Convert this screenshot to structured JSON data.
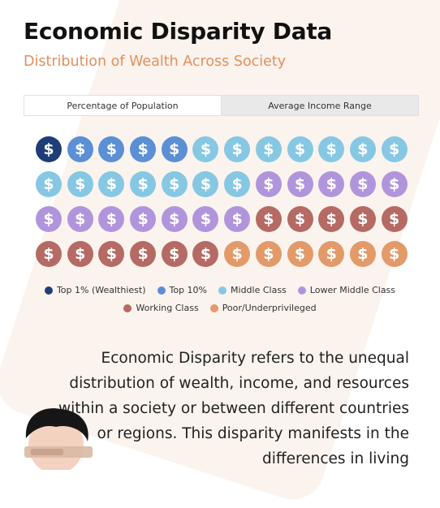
{
  "header": {
    "title": "Economic Disparity Data",
    "subtitle": "Distribution of Wealth Across Society"
  },
  "tabs": [
    {
      "label": "Percentage of Population",
      "active": true
    },
    {
      "label": "Average Income Range",
      "active": false
    }
  ],
  "coin_symbol": "$",
  "categories": [
    {
      "key": "top1",
      "label": "Top 1% (Wealthiest)",
      "color": "#1f3e78",
      "count": 1
    },
    {
      "key": "top10",
      "label": "Top 10%",
      "color": "#5b8fd6",
      "count": 4
    },
    {
      "key": "middle",
      "label": "Middle Class",
      "color": "#86c8e3",
      "count": 14
    },
    {
      "key": "lowermiddle",
      "label": "Lower Middle Class",
      "color": "#b195dc",
      "count": 12
    },
    {
      "key": "working",
      "label": "Working Class",
      "color": "#b56a64",
      "count": 11
    },
    {
      "key": "poor",
      "label": "Poor/Underprivileged",
      "color": "#e39a69",
      "count": 6
    }
  ],
  "legend_rows": [
    [
      0,
      1,
      2,
      3
    ],
    [
      4,
      5
    ]
  ],
  "description": "Economic Disparity refers to the unequal distribution of wealth, income, and resources within a society or between different countries or regions. This disparity manifests in the differences in living"
}
